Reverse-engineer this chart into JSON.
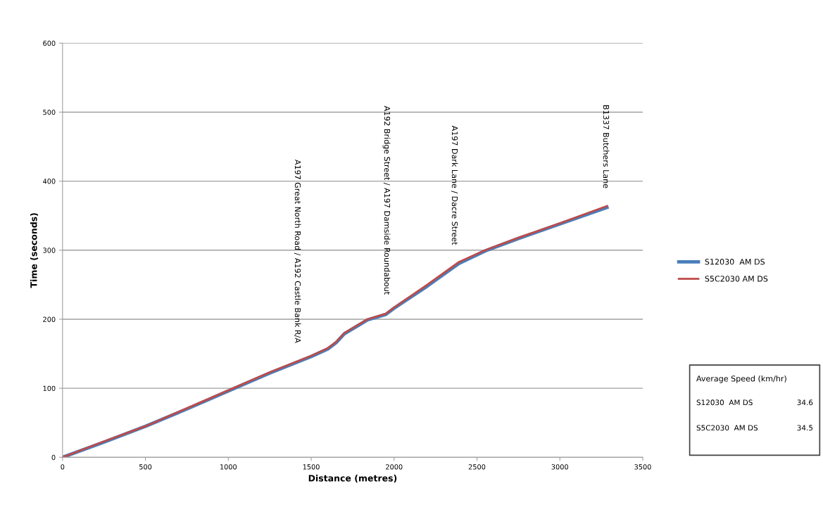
{
  "chart_data": {
    "type": "line",
    "xlabel": "Distance (metres)",
    "ylabel": "Time (seconds)",
    "xlim": [
      0,
      3500
    ],
    "xticks": [
      0,
      500,
      1000,
      1500,
      2000,
      2500,
      3000,
      3500
    ],
    "ylim": [
      0,
      600
    ],
    "yticks": [
      0,
      100,
      200,
      300,
      400,
      500,
      600
    ],
    "grid": "y",
    "legend": "right",
    "marker": "none",
    "line_style": "solid",
    "series": [
      {
        "name": "S12030  AM DS",
        "color": "#4a7ebb",
        "x": [
          0,
          250,
          500,
          750,
          1000,
          1250,
          1500,
          1600,
          1650,
          1700,
          1839,
          1950,
          2000,
          2200,
          2392,
          2550,
          2750,
          3000,
          3284
        ],
        "values": [
          0,
          22,
          45,
          70,
          96,
          122,
          146,
          157,
          166,
          179,
          199,
          207,
          216,
          248,
          281,
          299,
          317,
          338,
          362
        ]
      },
      {
        "name": "S5C2030 AM DS",
        "color": "#be4b48",
        "x": [
          0,
          250,
          500,
          750,
          1000,
          1250,
          1500,
          1600,
          1650,
          1700,
          1839,
          1950,
          2000,
          2200,
          2392,
          2550,
          2750,
          3000,
          3284
        ],
        "values": [
          0,
          23,
          45,
          71,
          97,
          123,
          147,
          158,
          167,
          180,
          200,
          208,
          217,
          250,
          283,
          300,
          318,
          339,
          364
        ]
      }
    ],
    "annotations": [
      {
        "text": "A197 Great North Road / A192 Castle Bank R/A",
        "x": 1415,
        "y": 140
      },
      {
        "text": "A192 Bridge Street / A197 Damside Roundabout",
        "x": 1954,
        "y": 210
      },
      {
        "text": "A197 Dark Lane / Dacre Street",
        "x": 2362,
        "y": 282
      },
      {
        "text": "B1337 Butchers Lane",
        "x": 3275,
        "y": 364
      },
      "Average Speed (km/hr)",
      "S12030  AM DS",
      "34.6",
      "S5C2030  AM DS",
      "34.5"
    ]
  }
}
